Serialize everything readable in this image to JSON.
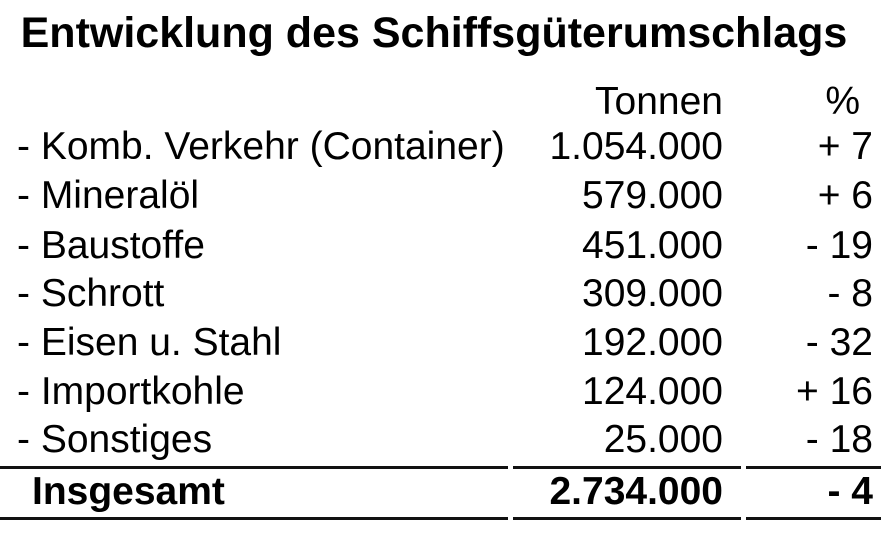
{
  "title": "Entwicklung des Schiffsgüterumschlags",
  "columns": {
    "tonnen": "Tonnen",
    "percent": "%"
  },
  "rows": [
    {
      "label": "- Komb. Verkehr (Container)",
      "tonnen": "1.054.000",
      "percent": "+ 7"
    },
    {
      "label": "- Mineralöl",
      "tonnen": "579.000",
      "percent": "+ 6"
    },
    {
      "label": "- Baustoffe",
      "tonnen": "451.000",
      "percent": "- 19"
    },
    {
      "label": "- Schrott",
      "tonnen": "309.000",
      "percent": "- 8"
    },
    {
      "label": "- Eisen u. Stahl",
      "tonnen": "192.000",
      "percent": "- 32"
    },
    {
      "label": "- Importkohle",
      "tonnen": "124.000",
      "percent": "+ 16"
    },
    {
      "label": "- Sonstiges",
      "tonnen": "25.000",
      "percent": "- 18"
    }
  ],
  "total": {
    "label": "Insgesamt",
    "tonnen": "2.734.000",
    "percent": "- 4"
  },
  "colors": {
    "text": "#000000",
    "background": "#ffffff",
    "rule": "#111111"
  }
}
